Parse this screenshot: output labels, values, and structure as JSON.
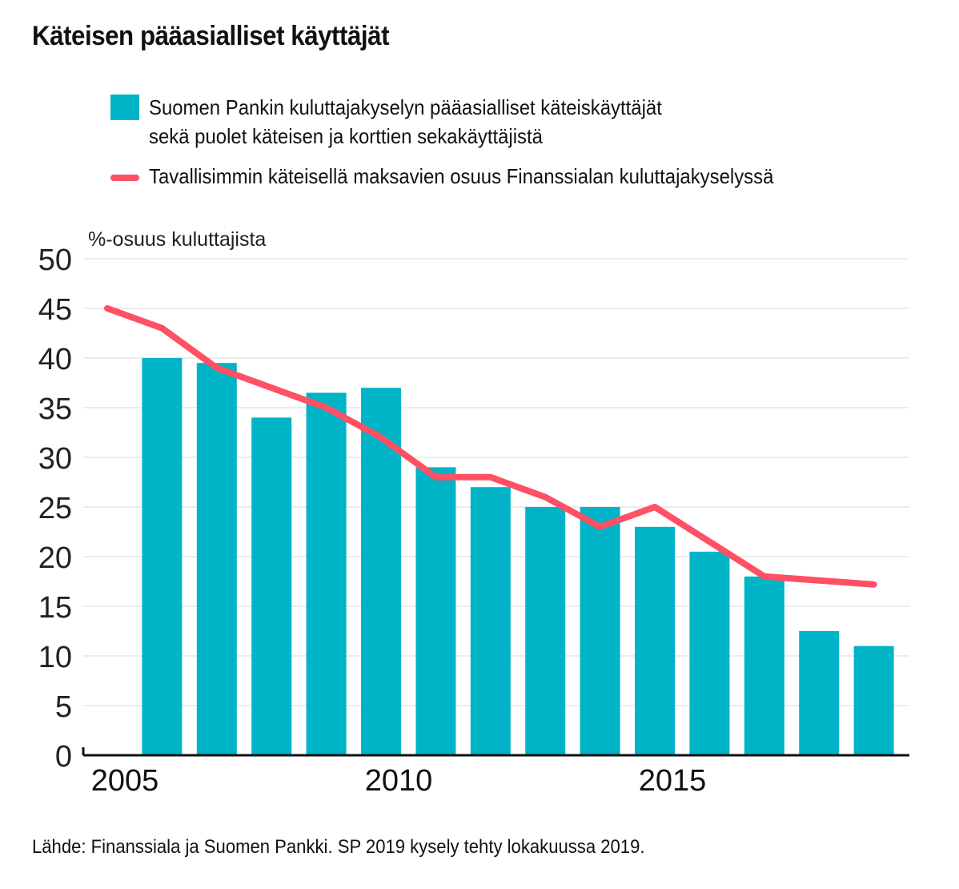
{
  "title": "Käteisen pääasialliset käyttäjät",
  "legend": {
    "bar_label_line1": "Suomen Pankin kuluttajakyselyn pääasialliset käteiskäyttäjät",
    "bar_label_line2": "sekä puolet käteisen ja korttien sekakäyttäjistä",
    "line_label": "Tavallisimmin käteisellä maksavien osuus Finanssialan kuluttajakyselyssä"
  },
  "source": "Lähde: Finanssiala ja Suomen Pankki. SP 2019 kysely tehty lokakuussa 2019.",
  "colors": {
    "bar": "#00b4c8",
    "line": "#ff5064",
    "grid": "#d9d9d9",
    "axis": "#111111"
  },
  "chart_data": {
    "type": "bar",
    "ylabel": "%-osuus kuluttajista",
    "ylim": [
      0,
      50
    ],
    "yticks": [
      0,
      5,
      10,
      15,
      20,
      25,
      30,
      35,
      40,
      45,
      50
    ],
    "xlim": [
      2005,
      2019
    ],
    "xticks": [
      2005,
      2010,
      2015
    ],
    "grid": true,
    "legend_position": "top",
    "series": [
      {
        "type": "bar",
        "x": [
          2006,
          2007,
          2008,
          2009,
          2010,
          2011,
          2012,
          2013,
          2014,
          2015,
          2016,
          2017,
          2018,
          2019
        ],
        "values": [
          40,
          39.5,
          34,
          36.5,
          37,
          29,
          27,
          25,
          25,
          23,
          20.5,
          18,
          12.5,
          11
        ]
      },
      {
        "type": "line",
        "x": [
          2005,
          2006,
          2007,
          2009,
          2010,
          2011,
          2012,
          2013,
          2014,
          2015,
          2017,
          2019
        ],
        "values": [
          45,
          43,
          39,
          35,
          32,
          28,
          28,
          26,
          23,
          25,
          18,
          17.2
        ]
      }
    ]
  }
}
